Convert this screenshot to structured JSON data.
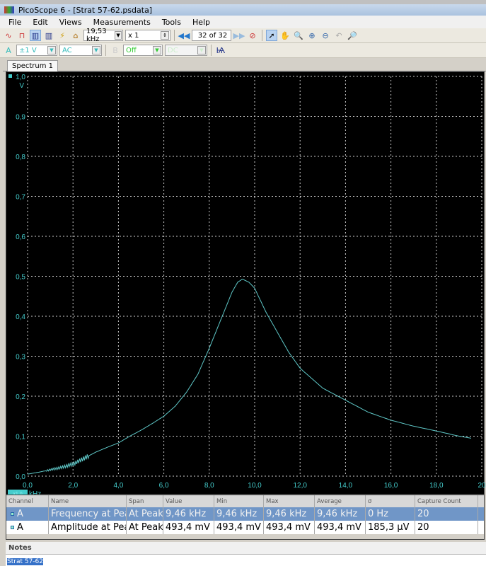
{
  "window": {
    "title": "PicoScope 6 - [Strat 57-62.psdata]"
  },
  "menu": [
    "File",
    "Edit",
    "Views",
    "Measurements",
    "Tools",
    "Help"
  ],
  "toolbar": {
    "timebase": "19,53 kHz",
    "zoom": "x 1",
    "capture": "32 of 32"
  },
  "channels": {
    "a_label": "A",
    "a_range": "±1 V",
    "a_coupling": "AC",
    "b_label": "B",
    "b_state": "Off",
    "b_coupling": "DC"
  },
  "tabs": [
    {
      "label": "Spectrum 1"
    }
  ],
  "chart_data": {
    "type": "line",
    "xlabel": "kHz",
    "ylabel": "V",
    "x_scale_badge": "x1.0",
    "xlim": [
      0,
      20
    ],
    "ylim": [
      0,
      1.0
    ],
    "grid": true,
    "x_ticks": [
      "0,0",
      "2,0",
      "4,0",
      "6,0",
      "8,0",
      "10,0",
      "12,0",
      "14,0",
      "16,0",
      "18,0",
      "20"
    ],
    "y_ticks": [
      "0,0",
      "0,1",
      "0,2",
      "0,3",
      "0,4",
      "0,5",
      "0,6",
      "0,7",
      "0,8",
      "0,9",
      "1,0"
    ],
    "line_color": "#5fc8c8",
    "series": [
      {
        "x": [
          0,
          0.5,
          1,
          1.5,
          2,
          2.5,
          3,
          3.5,
          4,
          4.5,
          5,
          5.5,
          6,
          6.5,
          7,
          7.5,
          8,
          8.5,
          9,
          9.25,
          9.46,
          9.75,
          10,
          10.5,
          11,
          11.5,
          12,
          13,
          14,
          15,
          16,
          17,
          18,
          19,
          19.53
        ],
        "y": [
          0.005,
          0.01,
          0.016,
          0.022,
          0.03,
          0.045,
          0.06,
          0.072,
          0.083,
          0.1,
          0.115,
          0.132,
          0.15,
          0.175,
          0.21,
          0.255,
          0.32,
          0.39,
          0.46,
          0.485,
          0.493,
          0.485,
          0.47,
          0.41,
          0.36,
          0.31,
          0.27,
          0.22,
          0.19,
          0.16,
          0.14,
          0.125,
          0.113,
          0.1,
          0.095
        ]
      }
    ]
  },
  "measurements": {
    "headers": [
      "Channel",
      "Name",
      "Span",
      "Value",
      "Min",
      "Max",
      "Average",
      "σ",
      "Capture Count"
    ],
    "rows": [
      [
        "A",
        "Frequency at Peak",
        "At Peak",
        "9,46 kHz",
        "9,46 kHz",
        "9,46 kHz",
        "9,46 kHz",
        "0 Hz",
        "20"
      ],
      [
        "A",
        "Amplitude at Peak",
        "At Peak",
        "493,4 mV",
        "493,4 mV",
        "493,4 mV",
        "493,4 mV",
        "185,3 µV",
        "20"
      ]
    ]
  },
  "notes": {
    "title": "Notes",
    "text": "Strat 57-62"
  }
}
